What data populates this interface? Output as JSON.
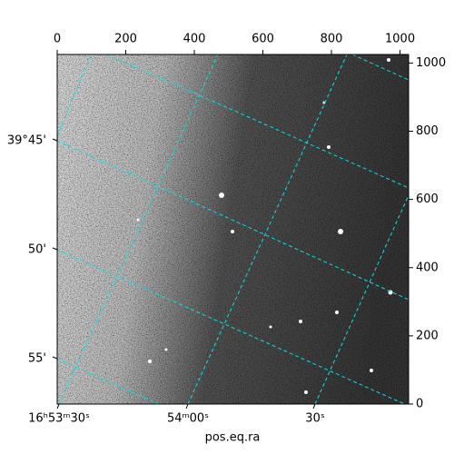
{
  "chart_data": {
    "type": "image",
    "xlabel": "pos.eq.ra",
    "xlim": [
      0,
      1025
    ],
    "ylim": [
      0,
      1025
    ],
    "xticks": [
      0,
      200,
      400,
      600,
      800,
      1000
    ],
    "yticks": [
      0,
      200,
      400,
      600,
      800,
      1000
    ],
    "ra_ticks": [
      "16ʰ53ᵐ30ˢ",
      "54ᵐ00ˢ",
      "30ˢ"
    ],
    "dec_ticks": [
      "39°45'",
      "50'",
      "55'"
    ]
  }
}
